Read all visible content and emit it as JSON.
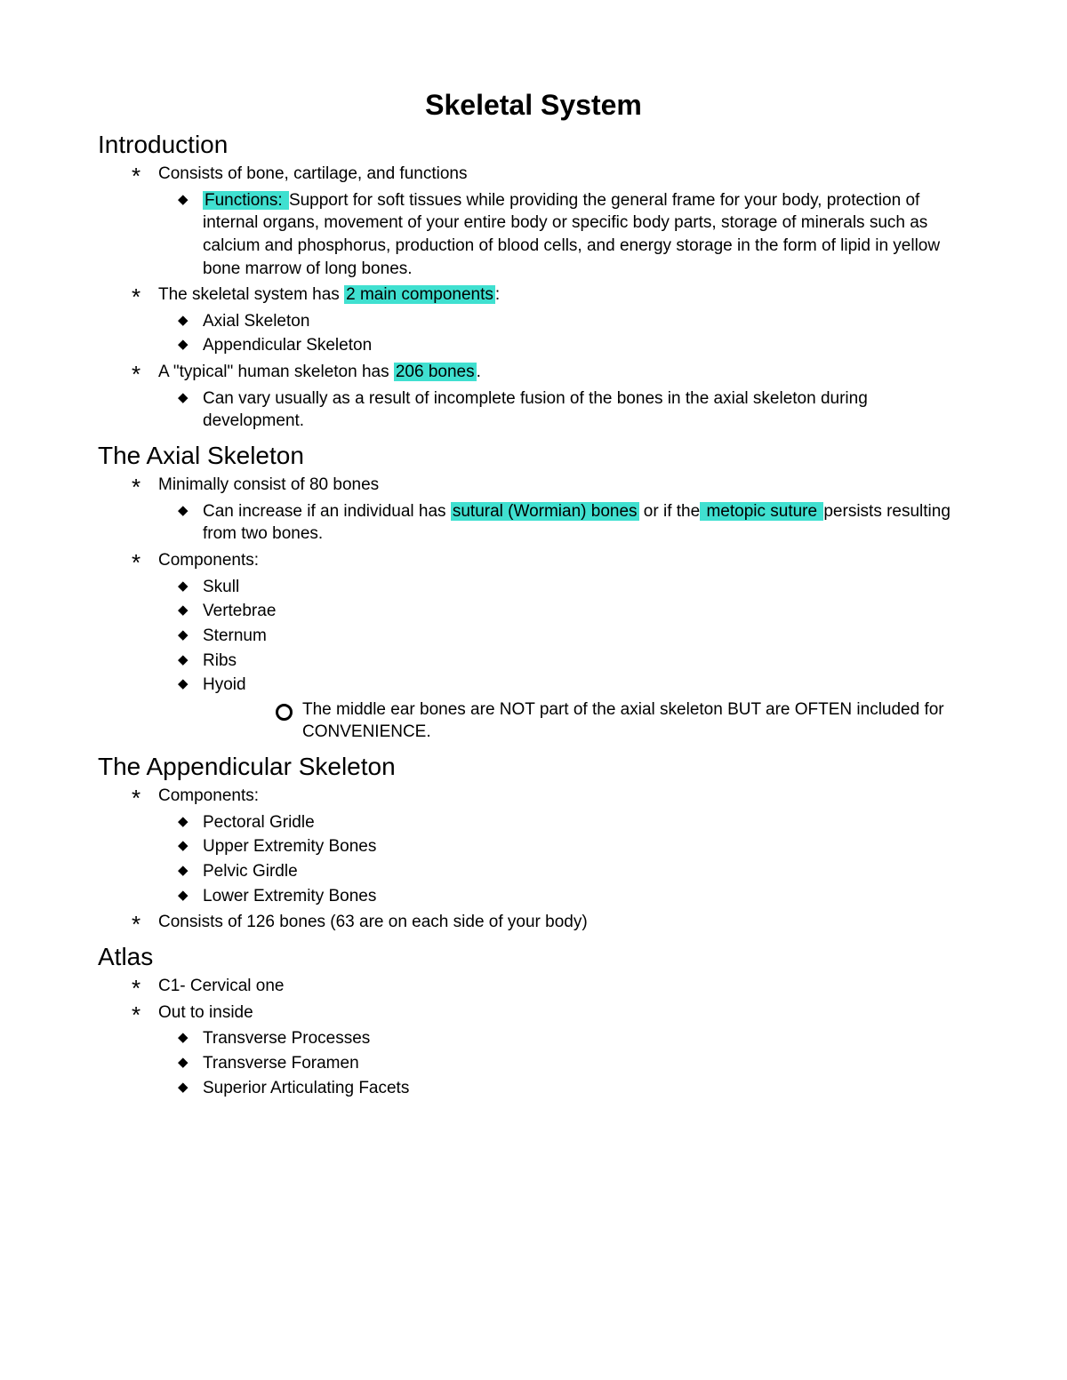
{
  "highlight_color": "#40e0d0",
  "background_color": "#ffffff",
  "text_color": "#000000",
  "title_fontsize": 32,
  "heading_fontsize": 28,
  "body_fontsize": 19,
  "title": "Skeletal System",
  "sections": {
    "intro": {
      "heading": "Introduction",
      "item1": "Consists of bone, cartilage, and functions",
      "item1_sub1_hl": "Functions: ",
      "item1_sub1_rest": " Support for soft tissues while providing the general frame for your body, protection of internal organs, movement of your entire body or specific body parts, storage of minerals such as calcium and phosphorus, production of blood cells, and energy storage in the form of lipid in yellow bone marrow of long bones.",
      "item2_pre": "The skeletal system has ",
      "item2_hl": "2 main components",
      "item2_post": ":",
      "item2_sub1": "Axial Skeleton",
      "item2_sub2": "Appendicular Skeleton",
      "item3_pre": "A \"typical\" human skeleton has ",
      "item3_hl": "206 bones",
      "item3_post": ".",
      "item3_sub1": "Can vary usually as a result of incomplete fusion of the bones in the axial skeleton during development."
    },
    "axial": {
      "heading": "The Axial Skeleton",
      "item1": "Minimally consist of 80 bones",
      "item1_sub1_pre": " Can increase if an individual has ",
      "item1_sub1_hl1": "sutural (Wormian) bones",
      "item1_sub1_mid": " or if the",
      "item1_sub1_hl2": " metopic suture ",
      "item1_sub1_post": "persists resulting from two bones.",
      "item2": "Components:",
      "item2_subs": {
        "a": "Skull",
        "b": "Vertebrae",
        "c": "Sternum",
        "d": "Ribs",
        "e": "Hyoid"
      },
      "item2_circle": "The middle ear bones are NOT part of the axial skeleton BUT are OFTEN included for CONVENIENCE."
    },
    "appendicular": {
      "heading": "The Appendicular Skeleton",
      "item1": "Components:",
      "item1_subs": {
        "a": "Pectoral Gridle",
        "b": "Upper Extremity Bones",
        "c": "Pelvic Girdle",
        "d": "Lower Extremity Bones"
      },
      "item2": "Consists of 126 bones (63 are on each side of your body)"
    },
    "atlas": {
      "heading": "Atlas",
      "item1": "C1- Cervical one",
      "item2": "Out to inside",
      "item2_subs": {
        "a": "Transverse Processes",
        "b": "Transverse Foramen",
        "c": "Superior Articulating Facets"
      }
    }
  }
}
